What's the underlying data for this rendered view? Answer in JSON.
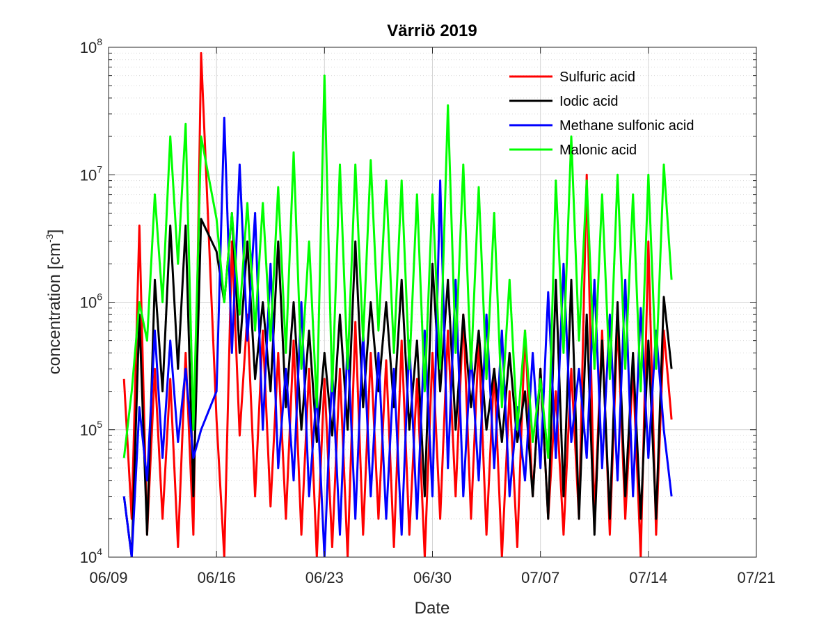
{
  "chart_data": {
    "type": "line",
    "title": "Värriö 2019",
    "xlabel": "Date",
    "ylabel_main": "concentration [cm",
    "ylabel_sup": "-3",
    "ylabel_close": "]",
    "xscale": "linear",
    "yscale": "log",
    "xlim": [
      "2019-06-09",
      "2019-07-21"
    ],
    "ylim": [
      10000,
      100000000
    ],
    "grid": true,
    "minor_grid": true,
    "legend_position": "top-right",
    "x_ticks": [
      {
        "date": "2019-06-09",
        "label": "06/09"
      },
      {
        "date": "2019-06-16",
        "label": "06/16"
      },
      {
        "date": "2019-06-23",
        "label": "06/23"
      },
      {
        "date": "2019-06-30",
        "label": "06/30"
      },
      {
        "date": "2019-07-07",
        "label": "07/07"
      },
      {
        "date": "2019-07-14",
        "label": "07/14"
      },
      {
        "date": "2019-07-21",
        "label": "07/21"
      }
    ],
    "y_ticks": [
      {
        "value": 10000,
        "base": "10",
        "exp": "4"
      },
      {
        "value": 100000,
        "base": "10",
        "exp": "5"
      },
      {
        "value": 1000000,
        "base": "10",
        "exp": "6"
      },
      {
        "value": 10000000,
        "base": "10",
        "exp": "7"
      },
      {
        "value": 100000000,
        "base": "10",
        "exp": "8"
      }
    ],
    "series": [
      {
        "name": "Sulfuric acid",
        "color": "#ff0000",
        "x": [
          "2019-06-10",
          "2019-06-10 12:00",
          "2019-06-11",
          "2019-06-11 12:00",
          "2019-06-12",
          "2019-06-12 12:00",
          "2019-06-13",
          "2019-06-13 12:00",
          "2019-06-14",
          "2019-06-14 12:00",
          "2019-06-15",
          "2019-06-16",
          "2019-06-16 12:00",
          "2019-06-17",
          "2019-06-17 12:00",
          "2019-06-18",
          "2019-06-18 12:00",
          "2019-06-19",
          "2019-06-19 12:00",
          "2019-06-20",
          "2019-06-20 12:00",
          "2019-06-21",
          "2019-06-21 12:00",
          "2019-06-22",
          "2019-06-22 12:00",
          "2019-06-23",
          "2019-06-23 12:00",
          "2019-06-24",
          "2019-06-24 12:00",
          "2019-06-25",
          "2019-06-25 12:00",
          "2019-06-26",
          "2019-06-26 12:00",
          "2019-06-27",
          "2019-06-27 12:00",
          "2019-06-28",
          "2019-06-28 12:00",
          "2019-06-29",
          "2019-06-29 12:00",
          "2019-06-30",
          "2019-06-30 12:00",
          "2019-07-01",
          "2019-07-01 12:00",
          "2019-07-02",
          "2019-07-02 12:00",
          "2019-07-03",
          "2019-07-03 12:00",
          "2019-07-04",
          "2019-07-04 12:00",
          "2019-07-05",
          "2019-07-05 12:00",
          "2019-07-06",
          "2019-07-06 12:00",
          "2019-07-07",
          "2019-07-07 12:00",
          "2019-07-08",
          "2019-07-08 12:00",
          "2019-07-09",
          "2019-07-09 12:00",
          "2019-07-10",
          "2019-07-10 12:00",
          "2019-07-11",
          "2019-07-11 12:00",
          "2019-07-12",
          "2019-07-12 12:00",
          "2019-07-13",
          "2019-07-13 12:00",
          "2019-07-14",
          "2019-07-14 12:00",
          "2019-07-15",
          "2019-07-15 12:00"
        ],
        "y": [
          250000,
          20000,
          4000000,
          15000,
          300000,
          20000,
          250000,
          12000,
          400000,
          15000,
          90000000,
          120000,
          10000,
          3000000,
          90000,
          800000,
          30000,
          600000,
          25000,
          400000,
          20000,
          500000,
          15000,
          300000,
          10000,
          250000,
          12000,
          300000,
          10000,
          700000,
          15000,
          400000,
          20000,
          350000,
          12000,
          500000,
          15000,
          250000,
          10000,
          400000,
          20000,
          600000,
          30000,
          800000,
          20000,
          500000,
          15000,
          300000,
          10000,
          200000,
          12000,
          600000,
          30000,
          300000,
          20000,
          200000,
          15000,
          300000,
          20000,
          10000000,
          20000,
          600000,
          15000,
          700000,
          20000,
          300000,
          10000,
          3000000,
          15000,
          600000,
          120000
        ]
      },
      {
        "name": "Iodic acid",
        "color": "#000000",
        "x": [
          "2019-06-10",
          "2019-06-10 12:00",
          "2019-06-11",
          "2019-06-11 12:00",
          "2019-06-12",
          "2019-06-12 12:00",
          "2019-06-13",
          "2019-06-13 12:00",
          "2019-06-14",
          "2019-06-14 12:00",
          "2019-06-15",
          "2019-06-16",
          "2019-06-16 12:00",
          "2019-06-17",
          "2019-06-17 12:00",
          "2019-06-18",
          "2019-06-18 12:00",
          "2019-06-19",
          "2019-06-19 12:00",
          "2019-06-20",
          "2019-06-20 12:00",
          "2019-06-21",
          "2019-06-21 12:00",
          "2019-06-22",
          "2019-06-22 12:00",
          "2019-06-23",
          "2019-06-23 12:00",
          "2019-06-24",
          "2019-06-24 12:00",
          "2019-06-25",
          "2019-06-25 12:00",
          "2019-06-26",
          "2019-06-26 12:00",
          "2019-06-27",
          "2019-06-27 12:00",
          "2019-06-28",
          "2019-06-28 12:00",
          "2019-06-29",
          "2019-06-29 12:00",
          "2019-06-30",
          "2019-06-30 12:00",
          "2019-07-01",
          "2019-07-01 12:00",
          "2019-07-02",
          "2019-07-02 12:00",
          "2019-07-03",
          "2019-07-03 12:00",
          "2019-07-04",
          "2019-07-04 12:00",
          "2019-07-05",
          "2019-07-05 12:00",
          "2019-07-06",
          "2019-07-06 12:00",
          "2019-07-07",
          "2019-07-07 12:00",
          "2019-07-08",
          "2019-07-08 12:00",
          "2019-07-09",
          "2019-07-09 12:00",
          "2019-07-10",
          "2019-07-10 12:00",
          "2019-07-11",
          "2019-07-11 12:00",
          "2019-07-12",
          "2019-07-12 12:00",
          "2019-07-13",
          "2019-07-13 12:00",
          "2019-07-14",
          "2019-07-14 12:00",
          "2019-07-15",
          "2019-07-15 12:00"
        ],
        "y": [
          30000,
          10000,
          800000,
          15000,
          1500000,
          200000,
          4000000,
          300000,
          4000000,
          30000,
          4500000,
          2500000,
          1000000,
          5000000,
          400000,
          3000000,
          250000,
          1000000,
          200000,
          3000000,
          150000,
          1000000,
          100000,
          600000,
          80000,
          400000,
          90000,
          800000,
          100000,
          3000000,
          150000,
          1000000,
          200000,
          1000000,
          150000,
          1500000,
          100000,
          500000,
          30000,
          2000000,
          200000,
          1500000,
          100000,
          800000,
          150000,
          600000,
          100000,
          300000,
          80000,
          400000,
          80000,
          200000,
          30000,
          300000,
          20000,
          1500000,
          30000,
          1500000,
          20000,
          800000,
          15000,
          500000,
          20000,
          1000000,
          30000,
          400000,
          20000,
          500000,
          20000,
          1100000,
          300000
        ]
      },
      {
        "name": "Methane sulfonic acid",
        "color": "#0000ff",
        "x": [
          "2019-06-10",
          "2019-06-10 12:00",
          "2019-06-11",
          "2019-06-11 12:00",
          "2019-06-12",
          "2019-06-12 12:00",
          "2019-06-13",
          "2019-06-13 12:00",
          "2019-06-14",
          "2019-06-14 12:00",
          "2019-06-15",
          "2019-06-16",
          "2019-06-16 12:00",
          "2019-06-17",
          "2019-06-17 12:00",
          "2019-06-18",
          "2019-06-18 12:00",
          "2019-06-19",
          "2019-06-19 12:00",
          "2019-06-20",
          "2019-06-20 12:00",
          "2019-06-21",
          "2019-06-21 12:00",
          "2019-06-22",
          "2019-06-22 12:00",
          "2019-06-23",
          "2019-06-23 12:00",
          "2019-06-24",
          "2019-06-24 12:00",
          "2019-06-25",
          "2019-06-25 12:00",
          "2019-06-26",
          "2019-06-26 12:00",
          "2019-06-27",
          "2019-06-27 12:00",
          "2019-06-28",
          "2019-06-28 12:00",
          "2019-06-29",
          "2019-06-29 12:00",
          "2019-06-30",
          "2019-06-30 12:00",
          "2019-07-01",
          "2019-07-01 12:00",
          "2019-07-02",
          "2019-07-02 12:00",
          "2019-07-03",
          "2019-07-03 12:00",
          "2019-07-04",
          "2019-07-04 12:00",
          "2019-07-05",
          "2019-07-05 12:00",
          "2019-07-06",
          "2019-07-06 12:00",
          "2019-07-07",
          "2019-07-07 12:00",
          "2019-07-08",
          "2019-07-08 12:00",
          "2019-07-09",
          "2019-07-09 12:00",
          "2019-07-10",
          "2019-07-10 12:00",
          "2019-07-11",
          "2019-07-11 12:00",
          "2019-07-12",
          "2019-07-12 12:00",
          "2019-07-13",
          "2019-07-13 12:00",
          "2019-07-14",
          "2019-07-14 12:00",
          "2019-07-15",
          "2019-07-15 12:00"
        ],
        "y": [
          30000,
          10000,
          150000,
          40000,
          600000,
          60000,
          500000,
          80000,
          300000,
          60000,
          100000,
          200000,
          28000000,
          400000,
          12000000,
          500000,
          5000000,
          100000,
          2000000,
          50000,
          300000,
          40000,
          1000000,
          30000,
          200000,
          10000,
          300000,
          15000,
          500000,
          20000,
          600000,
          30000,
          400000,
          20000,
          300000,
          15000,
          500000,
          20000,
          600000,
          30000,
          9000000,
          50000,
          1500000,
          30000,
          400000,
          40000,
          800000,
          50000,
          600000,
          30000,
          150000,
          40000,
          400000,
          50000,
          1200000,
          60000,
          2000000,
          80000,
          300000,
          60000,
          1500000,
          50000,
          800000,
          40000,
          1500000,
          30000,
          900000,
          60000,
          600000,
          100000,
          30000
        ]
      },
      {
        "name": "Malonic acid",
        "color": "#00ff00",
        "x": [
          "2019-06-10",
          "2019-06-10 12:00",
          "2019-06-11",
          "2019-06-11 12:00",
          "2019-06-12",
          "2019-06-12 12:00",
          "2019-06-13",
          "2019-06-13 12:00",
          "2019-06-14",
          "2019-06-14 12:00",
          "2019-06-15",
          "2019-06-16",
          "2019-06-16 12:00",
          "2019-06-17",
          "2019-06-17 12:00",
          "2019-06-18",
          "2019-06-18 12:00",
          "2019-06-19",
          "2019-06-19 12:00",
          "2019-06-20",
          "2019-06-20 12:00",
          "2019-06-21",
          "2019-06-21 12:00",
          "2019-06-22",
          "2019-06-22 12:00",
          "2019-06-23",
          "2019-06-23 12:00",
          "2019-06-24",
          "2019-06-24 12:00",
          "2019-06-25",
          "2019-06-25 12:00",
          "2019-06-26",
          "2019-06-26 12:00",
          "2019-06-27",
          "2019-06-27 12:00",
          "2019-06-28",
          "2019-06-28 12:00",
          "2019-06-29",
          "2019-06-29 12:00",
          "2019-06-30",
          "2019-06-30 12:00",
          "2019-07-01",
          "2019-07-01 12:00",
          "2019-07-02",
          "2019-07-02 12:00",
          "2019-07-03",
          "2019-07-03 12:00",
          "2019-07-04",
          "2019-07-04 12:00",
          "2019-07-05",
          "2019-07-05 12:00",
          "2019-07-06",
          "2019-07-06 12:00",
          "2019-07-07",
          "2019-07-07 12:00",
          "2019-07-08",
          "2019-07-08 12:00",
          "2019-07-09",
          "2019-07-09 12:00",
          "2019-07-10",
          "2019-07-10 12:00",
          "2019-07-11",
          "2019-07-11 12:00",
          "2019-07-12",
          "2019-07-12 12:00",
          "2019-07-13",
          "2019-07-13 12:00",
          "2019-07-14",
          "2019-07-14 12:00",
          "2019-07-15",
          "2019-07-15 12:00"
        ],
        "y": [
          60000,
          200000,
          1000000,
          500000,
          7000000,
          1000000,
          20000000,
          2000000,
          25000000,
          100000,
          20000000,
          4500000,
          1000000,
          5000000,
          800000,
          6000000,
          600000,
          6000000,
          500000,
          8000000,
          400000,
          15000000,
          300000,
          3000000,
          150000,
          60000000,
          200000,
          12000000,
          300000,
          12000000,
          500000,
          13000000,
          600000,
          9000000,
          400000,
          9000000,
          300000,
          7000000,
          200000,
          7000000,
          300000,
          35000000,
          400000,
          12000000,
          300000,
          8000000,
          250000,
          5000000,
          150000,
          1500000,
          100000,
          600000,
          80000,
          250000,
          60000,
          9000000,
          400000,
          20000000,
          500000,
          9000000,
          300000,
          7000000,
          250000,
          10000000,
          300000,
          7000000,
          200000,
          10000000,
          300000,
          12000000,
          1500000
        ]
      }
    ]
  }
}
